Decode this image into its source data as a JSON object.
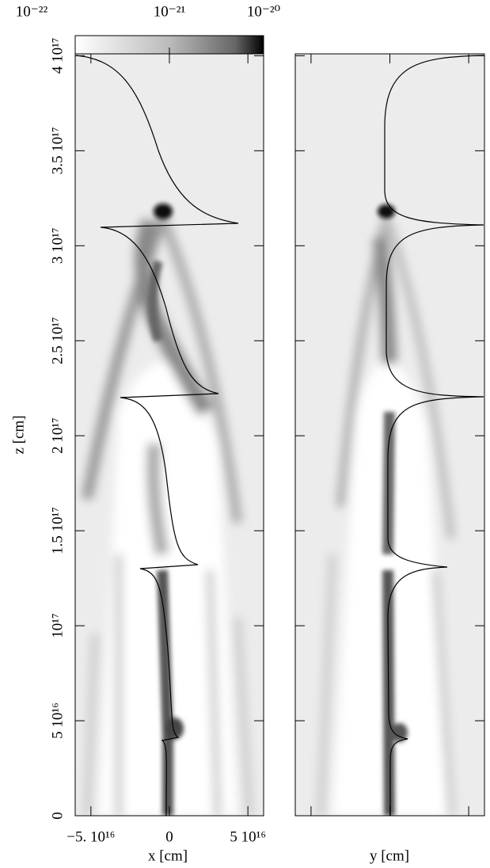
{
  "chart_data": {
    "type": "heatmap",
    "colorbar": {
      "lim": [
        -22,
        -20
      ],
      "ticks": [
        {
          "value": -22,
          "label": "10⁻²²"
        },
        {
          "value": -21,
          "label": "10⁻²¹"
        },
        {
          "value": -20,
          "label": "10⁻²⁰"
        }
      ]
    },
    "ylabel": "z [cm]",
    "xlabel": "x [cm]",
    "x2label": "y [cm]",
    "xlim": [
      -6e+16,
      6e+16
    ],
    "xticks": [
      {
        "value": -5e+16,
        "label": "−5. 10¹⁶"
      },
      0,
      {
        "value": 5e+16,
        "label": "5 10¹⁶"
      }
    ],
    "ylim": [
      0,
      4.01e+17
    ],
    "yticks": [
      0,
      {
        "value": 5e+16,
        "label": "5 10¹⁶"
      },
      {
        "value": 1e+17,
        "label": "10¹⁷"
      },
      {
        "value": 1.5e+17,
        "label": "1.5 10¹⁷"
      },
      {
        "value": 2e+17,
        "label": "2 10¹⁷"
      },
      {
        "value": 2.5e+17,
        "label": "2.5 10¹⁷"
      },
      {
        "value": 3e+17,
        "label": "3 10¹⁷"
      },
      {
        "value": 3.5e+17,
        "label": "3.5 10¹⁷"
      },
      {
        "value": 4e+17,
        "label": "4 10¹⁷"
      }
    ]
  }
}
